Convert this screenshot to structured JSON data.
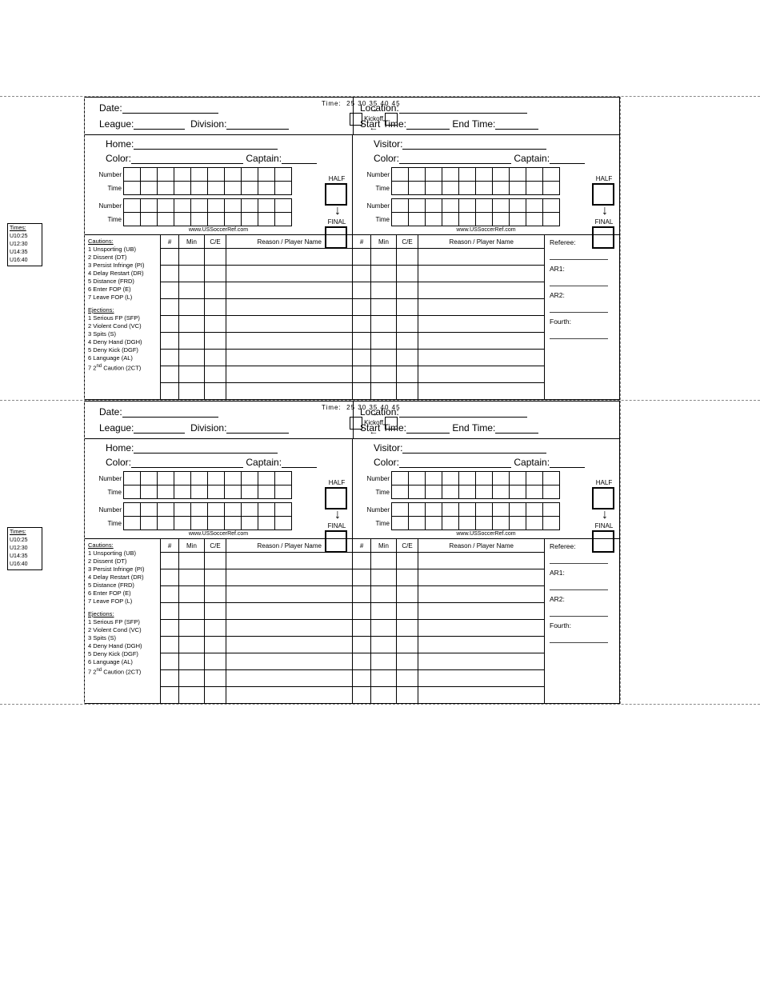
{
  "labels": {
    "date": "Date:",
    "league": "League:",
    "division": "Division:",
    "location": "Location:",
    "start_time": "Start Time:",
    "end_time": "End Time:",
    "home": "Home:",
    "visitor": "Visitor:",
    "color": "Color:",
    "captain": "Captain:",
    "number": "Number",
    "time": "Time",
    "half": "HALF",
    "final": "FINAL",
    "time_opts_label": "Time:",
    "time_opts": "25  30  35  40  45",
    "kickoff": "Kickoff",
    "url": "www.USSoccerRef.com",
    "disc_cols": [
      "#",
      "Min",
      "C/E",
      "Reason / Player Name"
    ],
    "referee": "Referee:",
    "ar1": "AR1:",
    "ar2": "AR2:",
    "fourth": "Fourth:"
  },
  "times_key": {
    "title": "Times:",
    "rows": [
      "U10:25",
      "U12:30",
      "U14:35",
      "U16:40"
    ]
  },
  "cautions": {
    "title": "Cautions:",
    "rows": [
      "1 Unsporting (UB)",
      "2 Dissent (DT)",
      "3 Persist Infringe (PI)",
      "4 Delay Restart (DR)",
      "5 Distance (FRD)",
      "6 Enter FOP (E)",
      "7 Leave FOP (L)"
    ]
  },
  "ejections": {
    "title": "Ejections:",
    "rows": [
      "1 Serious FP (SFP)",
      "2 Violent Cond (VC)",
      "3 Spits (S)",
      "4 Deny Hand (DGH)",
      "5 Deny Kick (DGF)",
      "6 Language (AL)",
      "7 2<sup>nd</sup> Caution (2CT)"
    ]
  },
  "layout": {
    "disc_rows": 9,
    "goal_cols": 10,
    "disc_col_widths": [
      20,
      28,
      24,
      168
    ],
    "disc_block_width": 240
  }
}
